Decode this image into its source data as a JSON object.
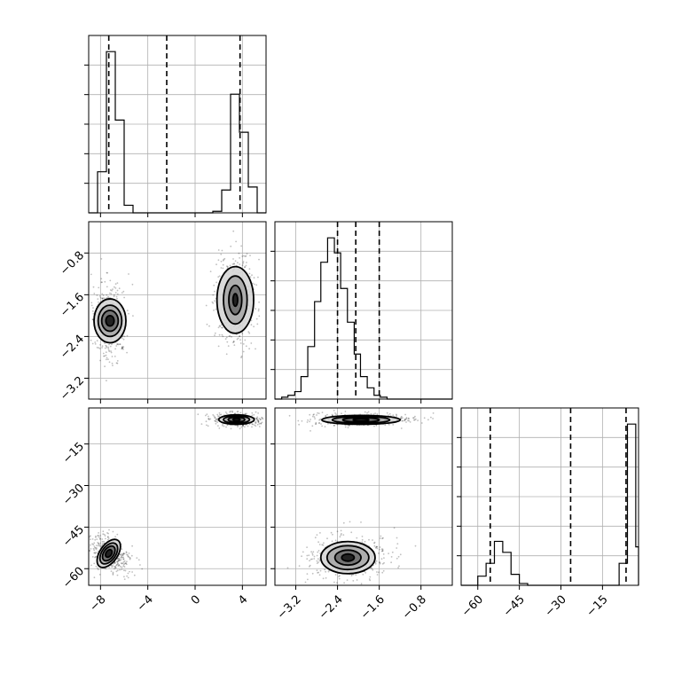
{
  "chart_data": {
    "type": "corner",
    "grid": true,
    "parameters": [
      {
        "id": "p1",
        "range": [
          -9.0,
          6.0
        ],
        "ticks": [
          -8,
          -4,
          0,
          4
        ],
        "tick_labels": [
          "−8",
          "−4",
          "0",
          "4"
        ],
        "quantiles": [
          -7.3,
          -2.4,
          3.8
        ],
        "histogram": {
          "bin_edges": [
            -9.0,
            -8.25,
            -7.5,
            -6.75,
            -6.0,
            -5.25,
            -4.5,
            -3.75,
            -3.0,
            -2.25,
            -1.5,
            -0.75,
            0.0,
            0.75,
            1.5,
            2.25,
            3.0,
            3.75,
            4.5,
            5.25,
            6.0
          ],
          "counts": [
            0,
            27,
            106,
            61,
            5,
            0,
            0,
            0,
            0,
            0,
            0,
            0,
            0,
            0,
            1,
            15,
            78,
            53,
            17,
            0
          ]
        }
      },
      {
        "id": "p2",
        "range": [
          -3.6,
          -0.2
        ],
        "ticks": [
          -3.2,
          -2.4,
          -1.6,
          -0.8
        ],
        "tick_labels": [
          "−3.2",
          "−2.4",
          "−1.6",
          "−0.8"
        ],
        "quantiles": [
          -2.4,
          -2.05,
          -1.6
        ],
        "histogram": {
          "bin_edges": [
            -3.6,
            -3.47,
            -3.35,
            -3.22,
            -3.1,
            -2.97,
            -2.84,
            -2.72,
            -2.59,
            -2.46,
            -2.34,
            -2.21,
            -2.08,
            -1.96,
            -1.83,
            -1.7,
            -1.58,
            -1.45,
            -1.32,
            -1.2,
            -1.07,
            -0.94,
            -0.82,
            -0.69,
            -0.56,
            -0.44,
            -0.31,
            -0.2
          ],
          "counts": [
            0,
            1,
            2,
            4,
            12,
            28,
            52,
            73,
            86,
            78,
            59,
            41,
            24,
            12,
            6,
            2,
            1,
            0,
            0,
            0,
            0,
            0,
            0,
            0,
            0,
            0,
            0
          ]
        }
      },
      {
        "id": "p3",
        "range": [
          -66,
          -2
        ],
        "ticks": [
          -60,
          -45,
          -30,
          -15
        ],
        "tick_labels": [
          "−60",
          "−45",
          "−30",
          "−15"
        ],
        "quantiles": [
          -55.5,
          -26.5,
          -6.5
        ],
        "histogram": {
          "bin_edges": [
            -66,
            -63,
            -60,
            -57,
            -54,
            -51,
            -48,
            -45,
            -42,
            -39,
            -36,
            -33,
            -30,
            -27,
            -24,
            -21,
            -18,
            -15,
            -12,
            -9,
            -6,
            -3,
            -2
          ],
          "counts": [
            0,
            0,
            10,
            24,
            48,
            36,
            12,
            2,
            0,
            0,
            0,
            0,
            0,
            0,
            0,
            0,
            0,
            0,
            0,
            24,
            176,
            42
          ]
        }
      }
    ],
    "pairs": [
      {
        "x": "p1",
        "y": "p2",
        "modes": [
          {
            "center": [
              -7.2,
              -2.1
            ],
            "spread": [
              0.5,
              0.25
            ],
            "n": 450,
            "contours": [
              [
                0.35,
                0.1
              ],
              [
                0.7,
                0.2
              ],
              [
                1.0,
                0.3
              ],
              [
                1.35,
                0.42
              ]
            ]
          },
          {
            "center": [
              3.4,
              -1.7
            ],
            "spread": [
              0.6,
              0.33
            ],
            "n": 450,
            "contours": [
              [
                0.2,
                0.12
              ],
              [
                0.55,
                0.28
              ],
              [
                1.0,
                0.46
              ],
              [
                1.55,
                0.64
              ]
            ]
          }
        ]
      },
      {
        "x": "p1",
        "y": "p3",
        "modes": [
          {
            "center": [
              -7.3,
              -54.5
            ],
            "spread": [
              0.45,
              3.2
            ],
            "n": 400,
            "rotation": -55,
            "contours": [
              [
                0.35,
                1.0
              ],
              [
                0.7,
                1.8
              ],
              [
                1.0,
                2.5
              ],
              [
                1.35,
                3.2
              ]
            ]
          },
          {
            "center": [
              3.5,
              -6.2
            ],
            "spread": [
              0.7,
              0.9
            ],
            "n": 400,
            "contours": [
              [
                0.3,
                0.45
              ],
              [
                0.7,
                0.9
              ],
              [
                1.1,
                1.3
              ],
              [
                1.5,
                1.7
              ]
            ]
          }
        ]
      },
      {
        "x": "p2",
        "y": "p3",
        "modes": [
          {
            "center": [
              -1.95,
              -6.3
            ],
            "spread": [
              0.35,
              0.8
            ],
            "n": 450,
            "contours": [
              [
                0.15,
                0.45
              ],
              [
                0.35,
                0.8
              ],
              [
                0.55,
                1.2
              ],
              [
                0.75,
                1.6
              ]
            ]
          },
          {
            "center": [
              -2.2,
              -56.0
            ],
            "spread": [
              0.28,
              3.0
            ],
            "n": 450,
            "contours": [
              [
                0.12,
                1.3
              ],
              [
                0.25,
                2.7
              ],
              [
                0.4,
                4.3
              ],
              [
                0.52,
                5.8
              ]
            ]
          }
        ]
      }
    ]
  }
}
